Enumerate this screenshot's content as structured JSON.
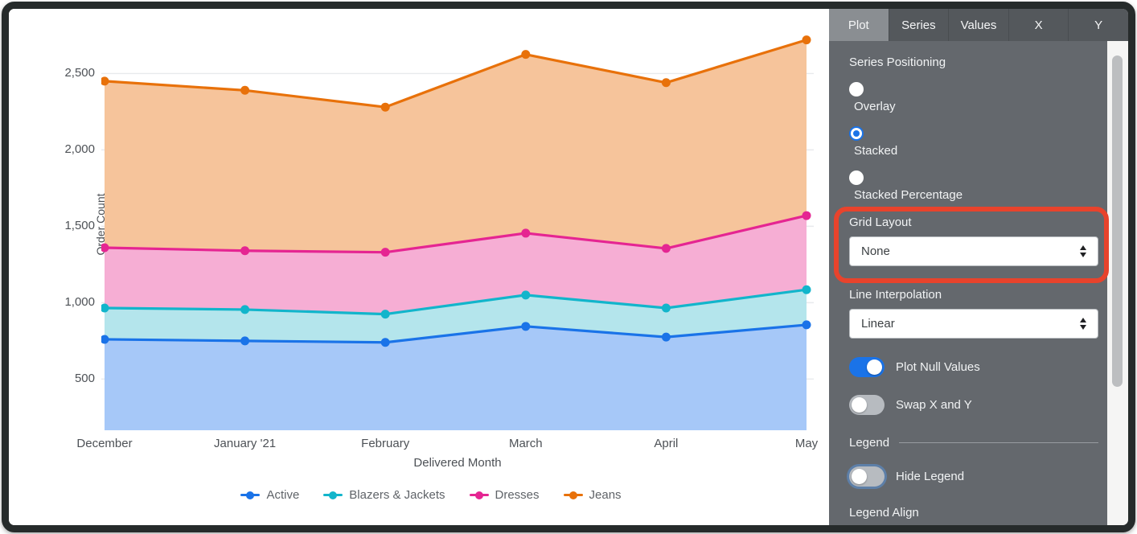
{
  "chart_data": {
    "type": "area",
    "stacked": true,
    "x_label": "Delivered Month",
    "y_label": "Order Count",
    "categories": [
      "December",
      "January '21",
      "February",
      "March",
      "April",
      "May"
    ],
    "series": [
      {
        "name": "Active",
        "color": "#1A73E8",
        "fill": "#A6C8F8",
        "values": [
          760,
          750,
          740,
          845,
          775,
          855
        ]
      },
      {
        "name": "Blazers & Jackets",
        "color": "#12B5CB",
        "fill": "#B4E5EC",
        "values": [
          205,
          205,
          185,
          205,
          190,
          230
        ]
      },
      {
        "name": "Dresses",
        "color": "#E52592",
        "fill": "#F6AED4",
        "values": [
          395,
          385,
          405,
          405,
          390,
          485
        ]
      },
      {
        "name": "Jeans",
        "color": "#E8710A",
        "fill": "#F6C49B",
        "values": [
          1090,
          1050,
          950,
          1170,
          1085,
          1150
        ]
      }
    ],
    "yticks": [
      {
        "v": 500,
        "label": "500"
      },
      {
        "v": 1000,
        "label": "1,000"
      },
      {
        "v": 1500,
        "label": "1,500"
      },
      {
        "v": 2000,
        "label": "2,000"
      },
      {
        "v": 2500,
        "label": "2,500"
      }
    ],
    "ylim": [
      165,
      2860
    ],
    "grid": true,
    "legend_position": "bottom"
  },
  "panel": {
    "tabs": [
      {
        "label": "Plot",
        "active": true
      },
      {
        "label": "Series",
        "active": false
      },
      {
        "label": "Values",
        "active": false
      },
      {
        "label": "X",
        "active": false
      },
      {
        "label": "Y",
        "active": false
      }
    ],
    "series_positioning": {
      "label": "Series Positioning",
      "options": [
        {
          "label": "Overlay",
          "selected": false
        },
        {
          "label": "Stacked",
          "selected": true
        },
        {
          "label": "Stacked Percentage",
          "selected": false
        }
      ]
    },
    "grid_layout": {
      "label": "Grid Layout",
      "value": "None",
      "highlighted": true
    },
    "line_interpolation": {
      "label": "Line Interpolation",
      "value": "Linear"
    },
    "plot_null": {
      "label": "Plot Null Values",
      "on": true
    },
    "swap_xy": {
      "label": "Swap X and Y",
      "on": false
    },
    "legend": {
      "title": "Legend",
      "hide": {
        "label": "Hide Legend",
        "on": false
      },
      "align_label": "Legend Align"
    },
    "annotation_color": "#E8432C"
  }
}
